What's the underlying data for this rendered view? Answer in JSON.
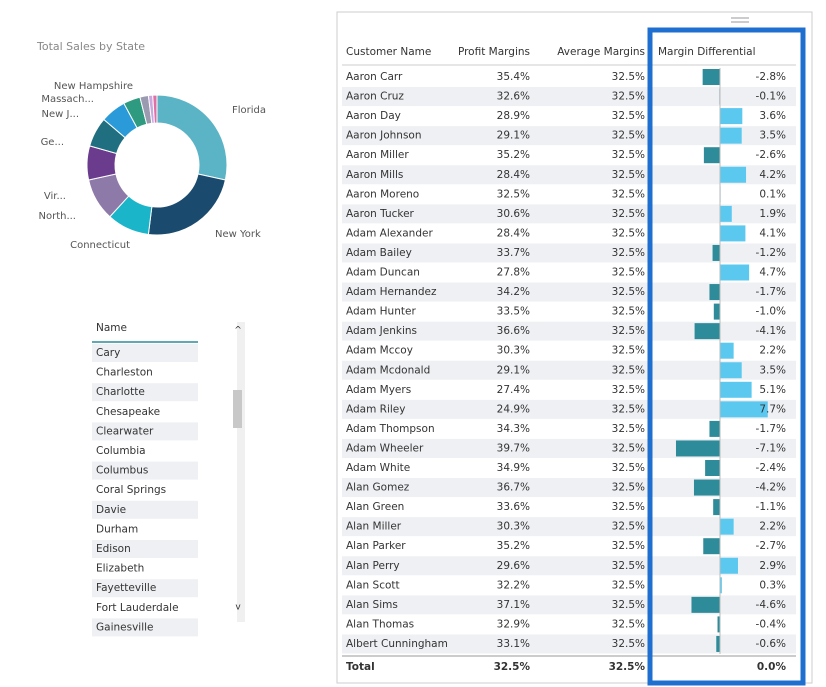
{
  "donut": {
    "type": "pie",
    "title": "Total Sales by State",
    "categories": [
      "Florida",
      "New York",
      "Connecticut",
      "North...",
      "Vir...",
      "Ge...",
      "New J...",
      "Massach...",
      "New Hampshire",
      null,
      null
    ],
    "values": [
      29,
      24,
      10,
      10,
      8,
      7,
      6,
      4,
      2,
      1,
      1
    ],
    "colors": [
      "#5ab4c5",
      "#1a4a6e",
      "#1bb5c9",
      "#8e7aa8",
      "#6b3b8e",
      "#1f6f80",
      "#2a9bd8",
      "#2e9b80",
      "#9a9ab0",
      "#c9a8e0",
      "#e06fa8"
    ]
  },
  "slicer": {
    "header": "Name",
    "items": [
      "Cary",
      "Charleston",
      "Charlotte",
      "Chesapeake",
      "Clearwater",
      "Columbia",
      "Columbus",
      "Coral Springs",
      "Davie",
      "Durham",
      "Edison",
      "Elizabeth",
      "Fayetteville",
      "Fort Lauderdale",
      "Gainesville"
    ]
  },
  "table": {
    "columns": [
      "Customer Name",
      "Profit Margins",
      "Average Margins",
      "Margin Differential"
    ],
    "rows": [
      {
        "name": "Aaron Carr",
        "profit": "35.4%",
        "average": "32.5%",
        "diff": -2.8,
        "diff_label": "-2.8%"
      },
      {
        "name": "Aaron Cruz",
        "profit": "32.6%",
        "average": "32.5%",
        "diff": -0.1,
        "diff_label": "-0.1%"
      },
      {
        "name": "Aaron Day",
        "profit": "28.9%",
        "average": "32.5%",
        "diff": 3.6,
        "diff_label": "3.6%"
      },
      {
        "name": "Aaron Johnson",
        "profit": "29.1%",
        "average": "32.5%",
        "diff": 3.5,
        "diff_label": "3.5%"
      },
      {
        "name": "Aaron Miller",
        "profit": "35.2%",
        "average": "32.5%",
        "diff": -2.6,
        "diff_label": "-2.6%"
      },
      {
        "name": "Aaron Mills",
        "profit": "28.4%",
        "average": "32.5%",
        "diff": 4.2,
        "diff_label": "4.2%"
      },
      {
        "name": "Aaron Moreno",
        "profit": "32.5%",
        "average": "32.5%",
        "diff": 0.1,
        "diff_label": "0.1%"
      },
      {
        "name": "Aaron Tucker",
        "profit": "30.6%",
        "average": "32.5%",
        "diff": 1.9,
        "diff_label": "1.9%"
      },
      {
        "name": "Adam Alexander",
        "profit": "28.4%",
        "average": "32.5%",
        "diff": 4.1,
        "diff_label": "4.1%"
      },
      {
        "name": "Adam Bailey",
        "profit": "33.7%",
        "average": "32.5%",
        "diff": -1.2,
        "diff_label": "-1.2%"
      },
      {
        "name": "Adam Duncan",
        "profit": "27.8%",
        "average": "32.5%",
        "diff": 4.7,
        "diff_label": "4.7%"
      },
      {
        "name": "Adam Hernandez",
        "profit": "34.2%",
        "average": "32.5%",
        "diff": -1.7,
        "diff_label": "-1.7%"
      },
      {
        "name": "Adam Hunter",
        "profit": "33.5%",
        "average": "32.5%",
        "diff": -1.0,
        "diff_label": "-1.0%"
      },
      {
        "name": "Adam Jenkins",
        "profit": "36.6%",
        "average": "32.5%",
        "diff": -4.1,
        "diff_label": "-4.1%"
      },
      {
        "name": "Adam Mccoy",
        "profit": "30.3%",
        "average": "32.5%",
        "diff": 2.2,
        "diff_label": "2.2%"
      },
      {
        "name": "Adam Mcdonald",
        "profit": "29.1%",
        "average": "32.5%",
        "diff": 3.5,
        "diff_label": "3.5%"
      },
      {
        "name": "Adam Myers",
        "profit": "27.4%",
        "average": "32.5%",
        "diff": 5.1,
        "diff_label": "5.1%"
      },
      {
        "name": "Adam Riley",
        "profit": "24.9%",
        "average": "32.5%",
        "diff": 7.7,
        "diff_label": "7.7%"
      },
      {
        "name": "Adam Thompson",
        "profit": "34.3%",
        "average": "32.5%",
        "diff": -1.7,
        "diff_label": "-1.7%"
      },
      {
        "name": "Adam Wheeler",
        "profit": "39.7%",
        "average": "32.5%",
        "diff": -7.1,
        "diff_label": "-7.1%"
      },
      {
        "name": "Adam White",
        "profit": "34.9%",
        "average": "32.5%",
        "diff": -2.4,
        "diff_label": "-2.4%"
      },
      {
        "name": "Alan Gomez",
        "profit": "36.7%",
        "average": "32.5%",
        "diff": -4.2,
        "diff_label": "-4.2%"
      },
      {
        "name": "Alan Green",
        "profit": "33.6%",
        "average": "32.5%",
        "diff": -1.1,
        "diff_label": "-1.1%"
      },
      {
        "name": "Alan Miller",
        "profit": "30.3%",
        "average": "32.5%",
        "diff": 2.2,
        "diff_label": "2.2%"
      },
      {
        "name": "Alan Parker",
        "profit": "35.2%",
        "average": "32.5%",
        "diff": -2.7,
        "diff_label": "-2.7%"
      },
      {
        "name": "Alan Perry",
        "profit": "29.6%",
        "average": "32.5%",
        "diff": 2.9,
        "diff_label": "2.9%"
      },
      {
        "name": "Alan Scott",
        "profit": "32.2%",
        "average": "32.5%",
        "diff": 0.3,
        "diff_label": "0.3%"
      },
      {
        "name": "Alan Sims",
        "profit": "37.1%",
        "average": "32.5%",
        "diff": -4.6,
        "diff_label": "-4.6%"
      },
      {
        "name": "Alan Thomas",
        "profit": "32.9%",
        "average": "32.5%",
        "diff": -0.4,
        "diff_label": "-0.4%"
      },
      {
        "name": "Albert Cunningham",
        "profit": "33.1%",
        "average": "32.5%",
        "diff": -0.6,
        "diff_label": "-0.6%"
      }
    ],
    "total": {
      "name": "Total",
      "profit": "32.5%",
      "average": "32.5%",
      "diff": 0.0,
      "diff_label": "0.0%"
    },
    "positive_color": "#5bc8f0",
    "negative_color": "#2e8b9a"
  }
}
